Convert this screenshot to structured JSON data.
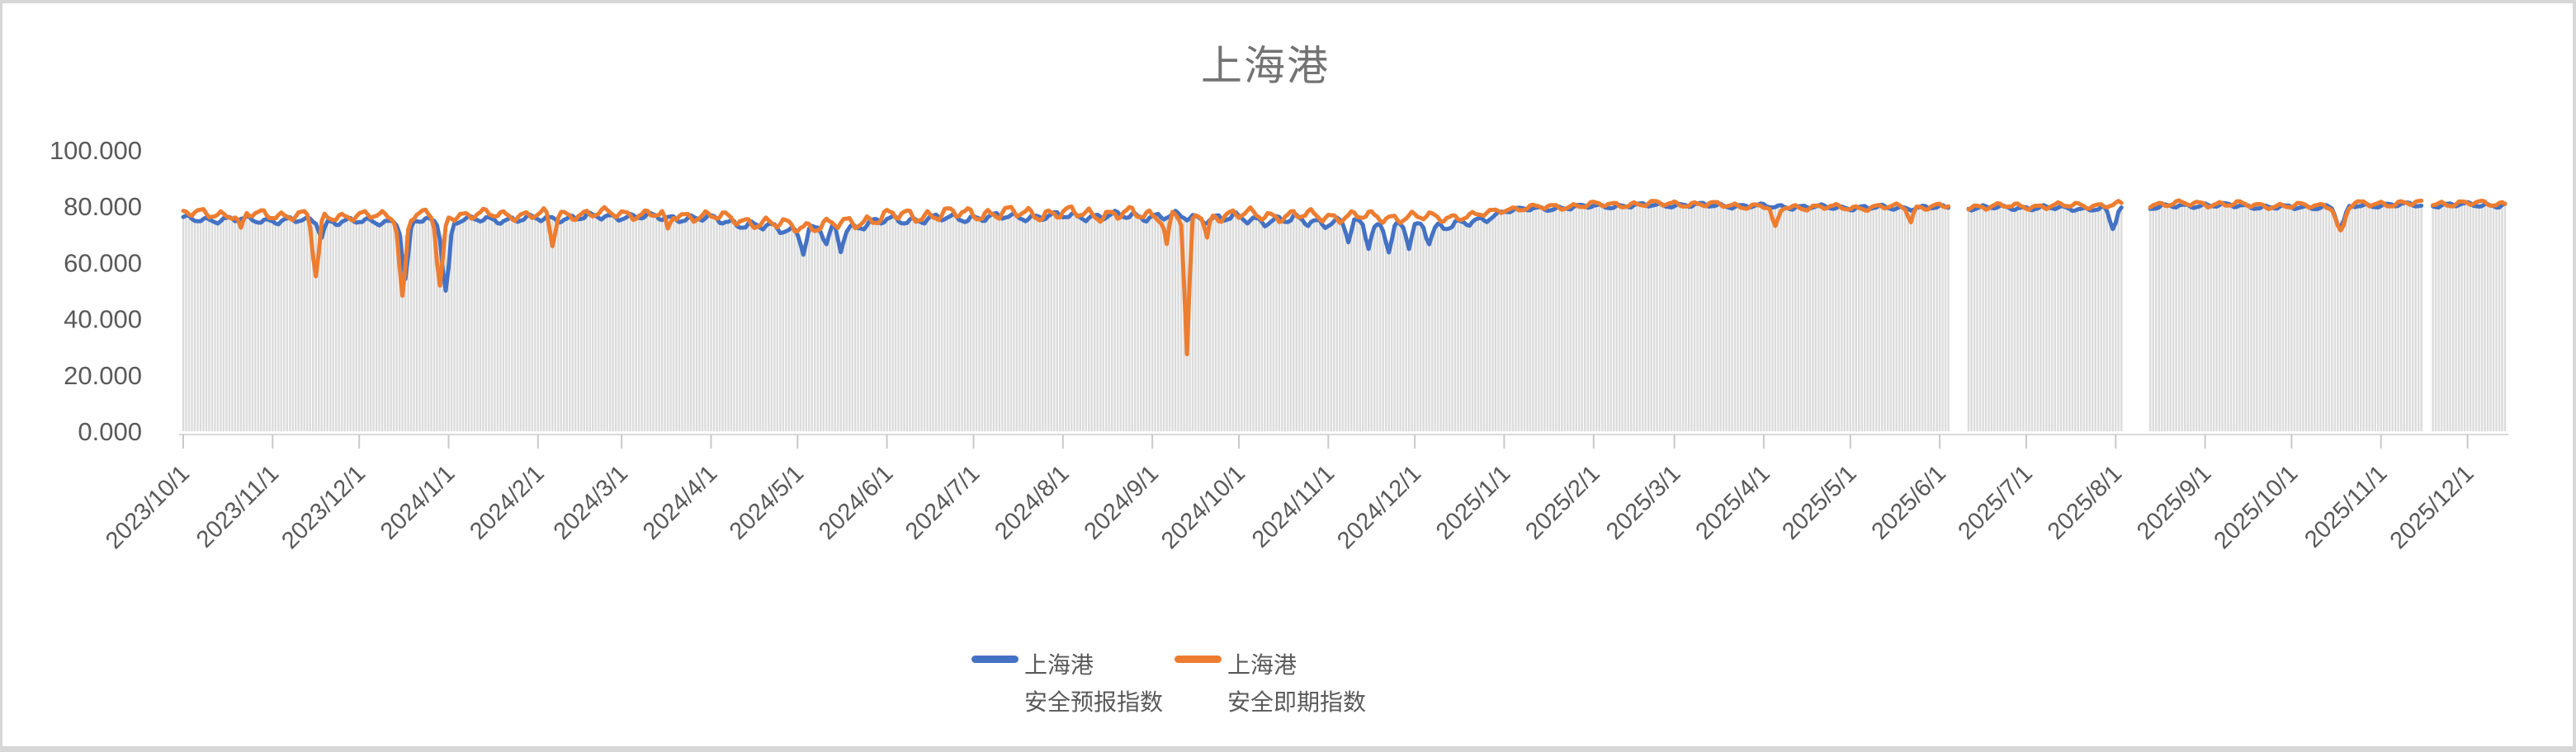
{
  "frame": {
    "surround_color": "#d7d7d7",
    "canvas_color": "#ffffff"
  },
  "title": {
    "text": "上海港",
    "color": "#737373"
  },
  "y_axis": {
    "labels": [
      "100.000",
      "80.000",
      "60.000",
      "40.000",
      "20.000",
      "0.000"
    ],
    "values": [
      100,
      80,
      60,
      40,
      20,
      0
    ],
    "color": "#595959"
  },
  "x_axis": {
    "labels": [
      "2023/10/1",
      "2023/11/1",
      "2023/12/1",
      "2024/1/1",
      "2024/2/1",
      "2024/3/1",
      "2024/4/1",
      "2024/5/1",
      "2024/6/1",
      "2024/7/1",
      "2024/8/1",
      "2024/9/1",
      "2024/10/1",
      "2024/11/1",
      "2024/12/1",
      "2025/1/1",
      "2025/2/1",
      "2025/3/1",
      "2025/4/1",
      "2025/5/1",
      "2025/6/1",
      "2025/7/1",
      "2025/8/1",
      "2025/9/1",
      "2025/10/1",
      "2025/11/1",
      "2025/12/1"
    ],
    "tick_days": [
      0,
      31,
      61,
      92,
      123,
      152,
      183,
      213,
      244,
      274,
      305,
      336,
      366,
      397,
      427,
      458,
      489,
      517,
      548,
      578,
      609,
      639,
      670,
      701,
      731,
      762,
      792
    ],
    "color": "#595959",
    "axis_line_color": "#d9d9d9",
    "tick_color": "#c9c9c9"
  },
  "legend": {
    "text_color": "#595959",
    "entries": [
      {
        "label_line1": "上海港",
        "label_line2": "安全预报指数",
        "color": "#4472C4"
      },
      {
        "label_line1": "上海港",
        "label_line2": "安全即期指数",
        "color": "#ED7D31"
      }
    ]
  },
  "chart_data": {
    "type": "line",
    "title": "上海港",
    "x_start": "2023/10/1",
    "x_end": "2025/12/14",
    "total_days": 805,
    "ylim": [
      0,
      100
    ],
    "y_ticks": [
      0,
      20,
      40,
      60,
      80,
      100
    ],
    "grid": "off",
    "legend_position": "bottom",
    "background_bars": {
      "color": "#dbdbdb",
      "note": "one light-gray daily bar under the forecast line"
    },
    "gaps_day_ranges": [
      [
        613,
        618
      ],
      [
        673,
        681
      ],
      [
        777,
        779
      ]
    ],
    "series": [
      {
        "name": "上海港 安全预报指数",
        "color": "#4472C4",
        "anchors": [
          [
            0,
            75.5
          ],
          [
            31,
            75
          ],
          [
            61,
            74.5
          ],
          [
            92,
            75
          ],
          [
            123,
            75.5
          ],
          [
            152,
            76.5
          ],
          [
            183,
            75.5
          ],
          [
            205,
            72
          ],
          [
            213,
            71.5
          ],
          [
            228,
            72
          ],
          [
            244,
            75
          ],
          [
            274,
            76
          ],
          [
            305,
            76.5
          ],
          [
            336,
            76.5
          ],
          [
            366,
            75.5
          ],
          [
            397,
            74.5
          ],
          [
            415,
            73
          ],
          [
            427,
            72.5
          ],
          [
            448,
            74
          ],
          [
            458,
            78.5
          ],
          [
            489,
            80
          ],
          [
            517,
            80.5
          ],
          [
            548,
            80
          ],
          [
            578,
            79.5
          ],
          [
            609,
            79.5
          ],
          [
            639,
            79.5
          ],
          [
            670,
            79
          ],
          [
            701,
            80.5
          ],
          [
            731,
            79.5
          ],
          [
            745,
            80
          ],
          [
            762,
            80.5
          ],
          [
            792,
            80.5
          ],
          [
            805,
            80.5
          ]
        ],
        "noise_amp": [
          [
            0,
            1.6
          ],
          [
            180,
            1.8
          ],
          [
            210,
            2.4
          ],
          [
            300,
            1.8
          ],
          [
            390,
            2.6
          ],
          [
            450,
            2.2
          ],
          [
            457,
            1.1
          ],
          [
            805,
            1.1
          ]
        ],
        "noise_phases": [
          0.5,
          1.7,
          3.9
        ],
        "dips": [
          [
            48,
            5,
            1.2
          ],
          [
            77,
            21,
            1.5
          ],
          [
            91,
            25,
            1.6
          ],
          [
            215,
            7,
            1.2
          ],
          [
            223,
            6,
            1.2
          ],
          [
            228,
            7,
            1.2
          ],
          [
            404,
            6,
            1.2
          ],
          [
            411,
            7,
            1.2
          ],
          [
            418,
            8,
            1.2
          ],
          [
            425,
            7,
            1.2
          ],
          [
            432,
            5,
            1.2
          ],
          [
            669,
            7,
            1.5
          ],
          [
            748,
            8,
            2.0
          ]
        ]
      },
      {
        "name": "上海港 安全即期指数",
        "color": "#ED7D31",
        "anchors": [
          [
            0,
            77.5
          ],
          [
            31,
            77
          ],
          [
            61,
            76.5
          ],
          [
            92,
            77
          ],
          [
            123,
            77
          ],
          [
            152,
            77.5
          ],
          [
            183,
            76.5
          ],
          [
            205,
            73.5
          ],
          [
            213,
            73
          ],
          [
            228,
            73.5
          ],
          [
            244,
            76.5
          ],
          [
            274,
            77.5
          ],
          [
            305,
            77.5
          ],
          [
            336,
            77
          ],
          [
            366,
            77
          ],
          [
            397,
            76.5
          ],
          [
            427,
            76
          ],
          [
            448,
            76.5
          ],
          [
            458,
            79
          ],
          [
            489,
            80.5
          ],
          [
            517,
            81
          ],
          [
            548,
            80
          ],
          [
            578,
            79.5
          ],
          [
            609,
            80
          ],
          [
            639,
            80
          ],
          [
            670,
            80.5
          ],
          [
            701,
            81
          ],
          [
            731,
            80
          ],
          [
            745,
            80.5
          ],
          [
            762,
            81
          ],
          [
            792,
            81
          ],
          [
            805,
            81
          ]
        ],
        "noise_amp": [
          [
            0,
            2.2
          ],
          [
            180,
            2.4
          ],
          [
            210,
            3.0
          ],
          [
            250,
            3.2
          ],
          [
            336,
            3.0
          ],
          [
            430,
            2.4
          ],
          [
            457,
            1.4
          ],
          [
            805,
            1.4
          ]
        ],
        "noise_phases": [
          2.3,
          0.4,
          5.1
        ],
        "dips": [
          [
            20,
            6,
            1.2
          ],
          [
            46,
            22,
            1.5
          ],
          [
            76,
            29,
            1.5
          ],
          [
            89,
            26,
            1.5
          ],
          [
            128,
            11,
            1.2
          ],
          [
            168,
            6,
            1.2
          ],
          [
            341,
            11,
            1.0
          ],
          [
            348,
            51,
            1.2
          ],
          [
            355,
            9,
            1.0
          ],
          [
            552,
            8,
            1.5
          ],
          [
            599,
            5,
            1.2
          ],
          [
            748,
            10,
            2.0
          ]
        ]
      }
    ]
  }
}
